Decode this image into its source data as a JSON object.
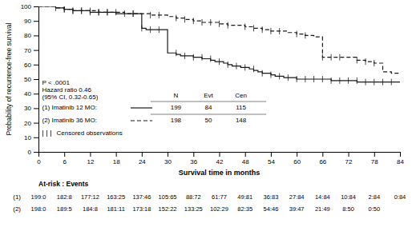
{
  "chart_data": {
    "type": "step",
    "ylabel": "Probability of recurrence-free survival",
    "xlabel": "Survival time in months",
    "xlim": [
      0,
      84
    ],
    "ylim": [
      0,
      100
    ],
    "xticks": [
      0,
      6,
      12,
      18,
      24,
      30,
      36,
      42,
      48,
      54,
      60,
      66,
      72,
      78,
      84
    ],
    "yticks": [
      0,
      10,
      20,
      30,
      40,
      50,
      60,
      70,
      80,
      90,
      100
    ],
    "grid": false,
    "annotation": [
      "P < .0001",
      "Hazard ratio 0.46",
      "(95% CI, 0.32-0.65)"
    ],
    "legend_header": [
      "N",
      "Evt",
      "Cen"
    ],
    "censored_label": "Censored observations",
    "at_risk_label": "At-risk : Events",
    "at_risk_times": [
      0,
      6,
      12,
      18,
      24,
      30,
      36,
      42,
      48,
      54,
      60,
      66,
      72,
      78,
      84
    ],
    "series": [
      {
        "name": "(1) Imatinib 12 MO:",
        "row_label": "(1)",
        "color": "#1a1a1a",
        "line_style": "solid",
        "n": 199,
        "evt": 84,
        "cen": 115,
        "x": [
          0,
          2,
          4,
          6,
          8,
          10,
          12,
          14,
          16,
          18,
          20,
          22,
          24,
          25,
          26,
          27,
          28,
          29,
          30,
          31,
          32,
          33,
          34,
          35,
          36,
          37,
          38,
          39,
          40,
          41,
          42,
          43,
          44,
          45,
          46,
          47,
          48,
          49,
          50,
          51,
          52,
          53,
          54,
          55,
          56,
          57,
          58,
          59,
          60,
          61,
          62,
          63,
          64,
          65,
          66,
          67,
          68,
          69,
          70,
          71,
          72,
          73,
          74,
          75,
          76,
          77,
          78,
          79,
          80,
          81,
          82,
          83,
          84
        ],
        "values": [
          100,
          100,
          99,
          98,
          97,
          97,
          96,
          96,
          96,
          95,
          95,
          95,
          85,
          84,
          84,
          84,
          84,
          84,
          68,
          68,
          67,
          66,
          66,
          66,
          65,
          65,
          64,
          64,
          63,
          62,
          62,
          61,
          60,
          59,
          59,
          58,
          58,
          57,
          56,
          55,
          54,
          54,
          53,
          52,
          52,
          51,
          51,
          51,
          50,
          50,
          50,
          50,
          50,
          50,
          50,
          50,
          49,
          49,
          49,
          49,
          49,
          49,
          48,
          48,
          48,
          48,
          48,
          48,
          48,
          48,
          48,
          48,
          48
        ],
        "censor_x": [
          6,
          8,
          10,
          12,
          14,
          16,
          22,
          24,
          26,
          28,
          32,
          34,
          36,
          38,
          40,
          42,
          44,
          46,
          48,
          50,
          52,
          54,
          56,
          58,
          60,
          62,
          64,
          66,
          68,
          70,
          72,
          74,
          76,
          78,
          80,
          82
        ],
        "censor_values": [
          98,
          97,
          97,
          96,
          96,
          96,
          95,
          85,
          84,
          84,
          68,
          66,
          65,
          65,
          64,
          62,
          60,
          59,
          58,
          57,
          54,
          53,
          52,
          51,
          50,
          50,
          50,
          50,
          49,
          49,
          49,
          49,
          48,
          48,
          48,
          48
        ],
        "at_risk": [
          "199:0",
          "182:8",
          "177:12",
          "163:25",
          "137:46",
          "105:65",
          "88:72",
          "61:77",
          "49:81",
          "36:83",
          "27:84",
          "14:84",
          "10:84",
          "2:84",
          "0:84"
        ]
      },
      {
        "name": "(2) Imatinib 36 MO:",
        "row_label": "(2)",
        "color": "#1a1a1a",
        "line_style": "dashed",
        "n": 198,
        "evt": 50,
        "cen": 148,
        "x": [
          0,
          2,
          4,
          6,
          8,
          10,
          12,
          14,
          16,
          18,
          20,
          22,
          24,
          26,
          28,
          30,
          32,
          34,
          36,
          38,
          40,
          42,
          44,
          46,
          48,
          50,
          52,
          54,
          56,
          58,
          60,
          62,
          64,
          66,
          68,
          70,
          72,
          74,
          76,
          78,
          80,
          82,
          84
        ],
        "values": [
          100,
          100,
          99,
          98,
          97,
          97,
          97,
          96,
          96,
          96,
          95,
          95,
          95,
          94,
          94,
          93,
          92,
          91,
          90,
          89,
          89,
          88,
          87,
          87,
          86,
          85,
          84,
          83,
          83,
          82,
          81,
          80,
          79,
          65,
          65,
          65,
          65,
          63,
          62,
          61,
          55,
          54,
          54
        ],
        "censor_x": [
          4,
          6,
          8,
          10,
          12,
          14,
          16,
          18,
          20,
          22,
          26,
          28,
          32,
          34,
          36,
          38,
          40,
          42,
          44,
          48,
          50,
          52,
          54,
          56,
          60,
          62,
          66,
          68,
          70,
          74,
          76,
          78
        ],
        "censor_values": [
          99,
          98,
          97,
          97,
          97,
          96,
          96,
          96,
          95,
          95,
          94,
          94,
          92,
          91,
          90,
          89,
          89,
          88,
          87,
          86,
          85,
          84,
          83,
          83,
          81,
          80,
          65,
          65,
          65,
          63,
          62,
          61
        ],
        "at_risk": [
          "198:0",
          "189:5",
          "184:8",
          "181:11",
          "173:18",
          "152:22",
          "133:25",
          "102:29",
          "82:35",
          "54:46",
          "39:47",
          "21:49",
          "8:50",
          "0:50",
          null
        ]
      }
    ]
  }
}
